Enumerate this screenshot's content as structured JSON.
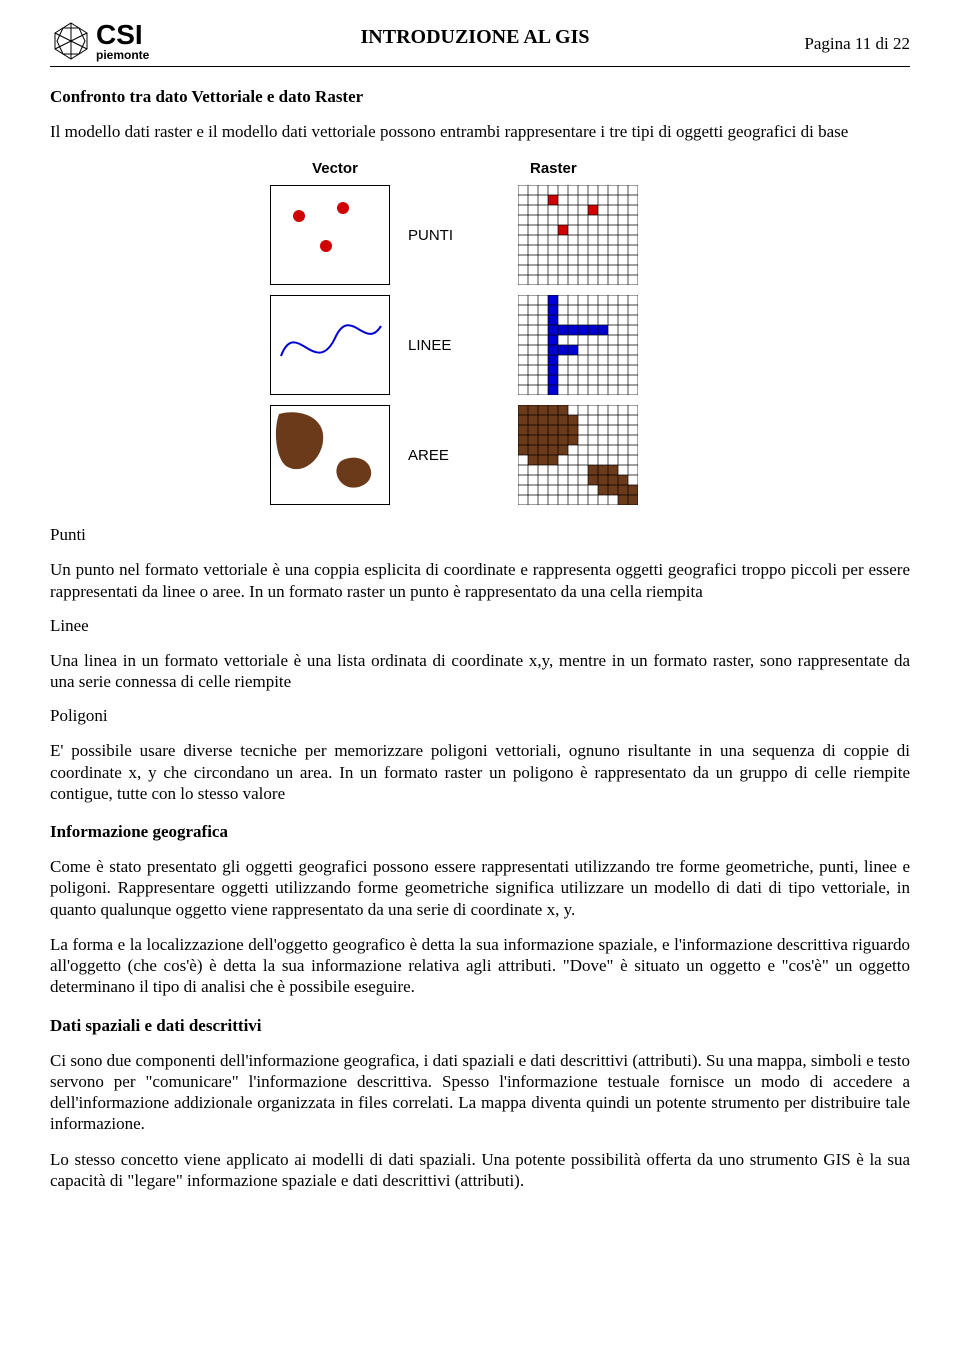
{
  "header": {
    "logo_main": "CSI",
    "logo_sub": "piemonte",
    "title": "INTRODUZIONE AL GIS",
    "page_info": "Pagina 11 di 22"
  },
  "figure": {
    "col_vector": "Vector",
    "col_raster": "Raster",
    "row_punti": "PUNTI",
    "row_linee": "LINEE",
    "row_aree": "AREE",
    "colors": {
      "point": "#d00000",
      "line": "#0000d0",
      "area": "#6b3a1a",
      "grid": "#000000"
    }
  },
  "content": {
    "h1": "Confronto tra dato Vettoriale e dato Raster",
    "p1": "Il modello dati raster e il modello dati vettoriale possono entrambi rappresentare i tre tipi di oggetti geografici di base",
    "s_punti": "Punti",
    "p_punti": "Un punto nel formato vettoriale è una coppia esplicita di coordinate e rappresenta oggetti geografici troppo piccoli per essere rappresentati da linee o aree. In un formato raster un punto è rappresentato da una cella riempita",
    "s_linee": "Linee",
    "p_linee": "Una linea in un formato vettoriale è una lista ordinata di coordinate x,y, mentre in un formato raster, sono rappresentate da una serie connessa di celle riempite",
    "s_poligoni": "Poligoni",
    "p_poligoni": "E' possibile usare diverse tecniche per memorizzare poligoni vettoriali, ognuno risultante in una sequenza di coppie di coordinate x, y che circondano un area. In un formato raster un poligono è rappresentato da un gruppo di celle riempite contigue, tutte con lo stesso valore",
    "h2": "Informazione geografica",
    "p_info1": "Come è stato presentato gli oggetti geografici possono essere rappresentati utilizzando tre forme geometriche, punti, linee e poligoni. Rappresentare oggetti utilizzando forme geometriche significa utilizzare un modello di dati di tipo vettoriale, in quanto qualunque oggetto viene rappresentato da una serie di coordinate x, y.",
    "p_info2": "La forma e la localizzazione dell'oggetto geografico è detta la sua informazione spaziale, e l'informazione descrittiva riguardo all'oggetto (che cos'è) è detta la sua informazione relativa agli attributi. \"Dove\" è situato un oggetto e \"cos'è\" un oggetto determinano il tipo di analisi che è possibile eseguire.",
    "h3": "Dati spaziali e dati descrittivi",
    "p_dati": "Ci sono due componenti dell'informazione geografica, i dati spaziali e dati descrittivi (attributi). Su una mappa, simboli e testo servono per \"comunicare\" l'informazione descrittiva. Spesso l'informazione testuale fornisce un modo di accedere a dell'informazione addizionale organizzata in files correlati. La mappa diventa quindi un potente strumento per distribuire tale informazione.",
    "p_dati2": "Lo stesso concetto viene applicato ai modelli di dati spaziali. Una potente possibilità offerta da uno strumento GIS è la sua capacità di \"legare\" informazione spaziale e dati descrittivi (attributi)."
  }
}
